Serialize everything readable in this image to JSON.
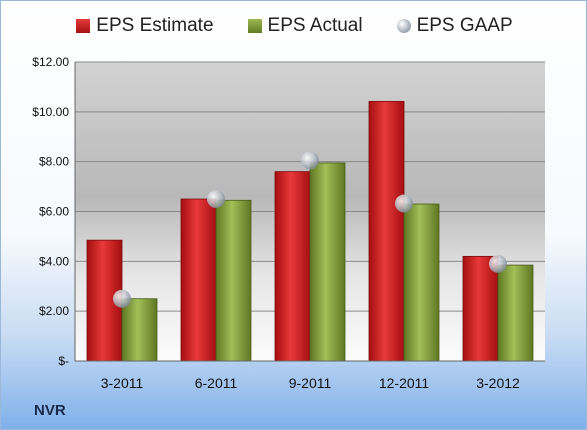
{
  "chart_data": {
    "type": "bar",
    "categories": [
      "3-2011",
      "6-2011",
      "9-2011",
      "12-2011",
      "3-2012"
    ],
    "series": [
      {
        "name": "EPS Estimate",
        "values": [
          4.85,
          6.5,
          7.6,
          10.42,
          4.2
        ],
        "color": "#c8191c"
      },
      {
        "name": "EPS Actual",
        "values": [
          2.5,
          6.45,
          7.95,
          6.3,
          3.85
        ],
        "color": "#7f9a35"
      },
      {
        "name": "EPS GAAP",
        "values": [
          2.5,
          6.5,
          8.05,
          6.32,
          3.9
        ],
        "color": "#a9b2bd",
        "marker": "sphere"
      }
    ],
    "y_ticks": [
      "$-",
      "$2.00",
      "$4.00",
      "$6.00",
      "$8.00",
      "$10.00",
      "$12.00"
    ],
    "ylim": [
      0,
      12
    ],
    "grid": true,
    "legend_position": "top"
  },
  "footer": {
    "ticker": "NVR"
  }
}
